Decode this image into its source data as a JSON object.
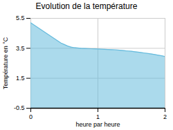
{
  "chart_data": {
    "type": "area",
    "title": "Evolution de la température",
    "x_label": "heure par heure",
    "y_label": "Température en °C",
    "x": [
      0.0,
      0.05,
      0.1,
      0.15,
      0.2,
      0.25,
      0.3,
      0.35,
      0.4,
      0.45,
      0.5,
      0.55,
      0.6,
      0.65,
      0.7,
      0.75,
      0.8,
      0.85,
      0.9,
      0.95,
      1.0,
      1.05,
      1.1,
      1.15,
      1.2,
      1.25,
      1.3,
      1.35,
      1.4,
      1.45,
      1.5,
      1.55,
      1.6,
      1.65,
      1.7,
      1.75,
      1.8,
      1.85,
      1.9,
      1.95,
      2.0
    ],
    "values": [
      5.2,
      5.05,
      4.9,
      4.75,
      4.6,
      4.45,
      4.3,
      4.15,
      4.0,
      3.85,
      3.75,
      3.65,
      3.58,
      3.54,
      3.52,
      3.5,
      3.49,
      3.48,
      3.47,
      3.46,
      3.45,
      3.44,
      3.43,
      3.42,
      3.41,
      3.4,
      3.38,
      3.36,
      3.34,
      3.32,
      3.3,
      3.27,
      3.24,
      3.21,
      3.18,
      3.15,
      3.12,
      3.08,
      3.04,
      3.0,
      2.95
    ],
    "color": "#66bbdd",
    "xlim": [
      0,
      2
    ],
    "xticks": [
      0,
      1,
      2
    ],
    "ylim": [
      -0.5,
      5.5
    ],
    "yticks": [
      -0.5,
      1.5,
      3.5,
      5.5
    ],
    "grid": true
  }
}
